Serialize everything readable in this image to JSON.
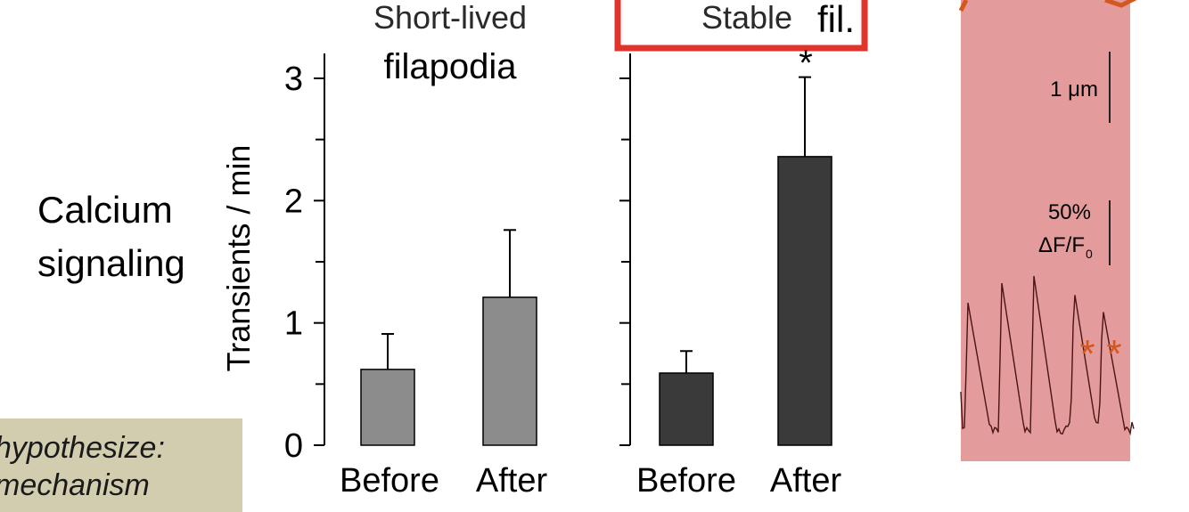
{
  "row_label": {
    "line1": "Calcium",
    "line2": "signaling"
  },
  "callout": {
    "line1": "hypothesize:",
    "line2": "mechanism"
  },
  "chart_data": [
    {
      "type": "bar",
      "title_line1": "Short-lived",
      "title_line2": "filapodia",
      "ylabel": "Transients / min",
      "ylim": [
        0,
        3
      ],
      "yticks": [
        "0",
        "1",
        "2",
        "3"
      ],
      "categories": [
        "Before",
        "After"
      ],
      "values": [
        0.62,
        1.21
      ],
      "errors": [
        0.29,
        0.55
      ],
      "bar_color": "#8c8c8c",
      "annotations": []
    },
    {
      "type": "bar",
      "title_line1": "Stable",
      "title_line2": "fil.",
      "ylabel": "",
      "ylim": [
        0,
        3
      ],
      "yticks": [],
      "categories": [
        "Before",
        "After"
      ],
      "values": [
        0.59,
        2.36
      ],
      "errors": [
        0.18,
        0.65
      ],
      "bar_color": "#3a3a3a",
      "annotations": [
        "*",
        "",
        ""
      ],
      "highlight_color": "#e0332b"
    }
  ],
  "trace_panel": {
    "background": "#e39b9b",
    "scale_length": "1 μm",
    "scale_amplitude_line1": "50%",
    "scale_amplitude_line2": "ΔF/F",
    "scale_amplitude_sub": "0",
    "markers": [
      "*",
      "*"
    ],
    "marker_color": "#d2581f"
  }
}
